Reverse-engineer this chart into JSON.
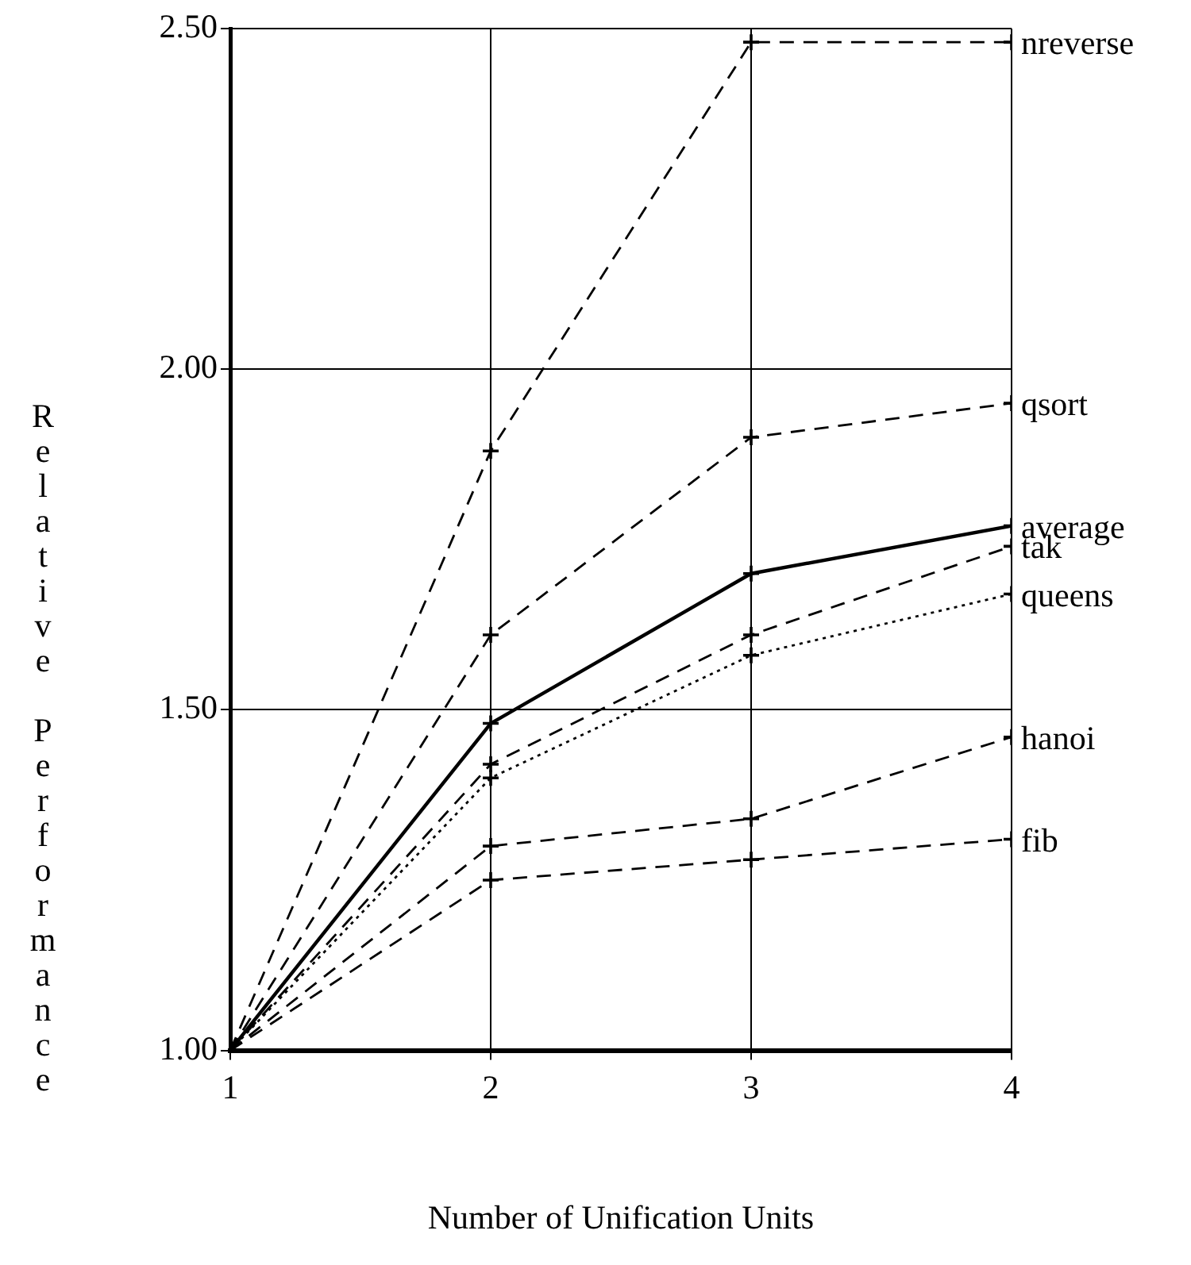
{
  "chart_data": {
    "type": "line",
    "xlabel": "Number of Unification Units",
    "ylabel": "Relative Performance",
    "x": [
      1,
      2,
      3,
      4
    ],
    "xlim": [
      1,
      4
    ],
    "xticks": [
      1,
      2,
      3,
      4
    ],
    "ylim": [
      1,
      2.5
    ],
    "yticks": [
      {
        "value": 1,
        "label": "1.00"
      },
      {
        "value": 1.5,
        "label": "1.50"
      },
      {
        "value": 2,
        "label": "2.00"
      },
      {
        "value": 2.5,
        "label": "2.50"
      }
    ],
    "grid": true,
    "legend": false,
    "marker": "cross",
    "series": [
      {
        "name": "nreverse",
        "color": "#000000",
        "line_style": "dashed",
        "values": [
          1.0,
          1.88,
          2.48,
          2.48
        ]
      },
      {
        "name": "qsort",
        "color": "#000000",
        "line_style": "dashed",
        "values": [
          1.0,
          1.61,
          1.9,
          1.95
        ]
      },
      {
        "name": "average",
        "color": "#000000",
        "line_style": "solid",
        "values": [
          1.0,
          1.48,
          1.7,
          1.77
        ]
      },
      {
        "name": "tak",
        "color": "#000000",
        "line_style": "dashed",
        "values": [
          1.0,
          1.42,
          1.61,
          1.74
        ]
      },
      {
        "name": "queens",
        "color": "#000000",
        "line_style": "dotted",
        "values": [
          1.0,
          1.4,
          1.58,
          1.67
        ]
      },
      {
        "name": "hanoi",
        "color": "#000000",
        "line_style": "dashed",
        "values": [
          1.0,
          1.3,
          1.34,
          1.46
        ]
      },
      {
        "name": "fib",
        "color": "#000000",
        "line_style": "dashed",
        "values": [
          1.0,
          1.25,
          1.28,
          1.31
        ]
      }
    ]
  }
}
